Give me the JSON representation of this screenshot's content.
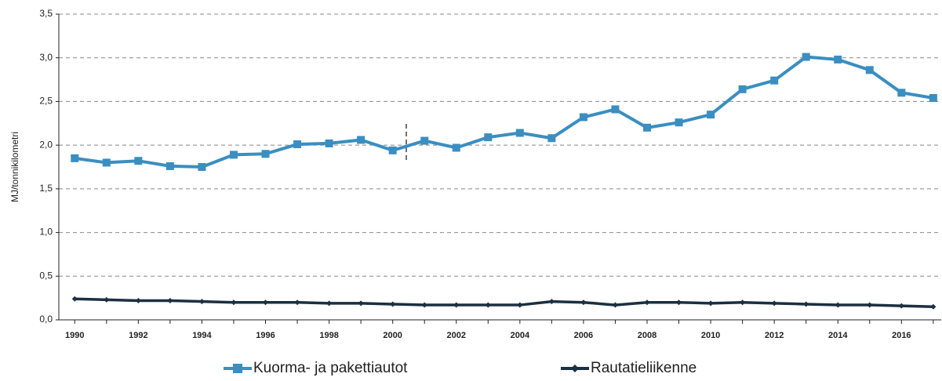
{
  "chart_data": {
    "type": "line",
    "y_label": "MJ/tonnikilometri",
    "x": [
      1990,
      1991,
      1992,
      1993,
      1994,
      1995,
      1996,
      1997,
      1998,
      1999,
      2000,
      2001,
      2002,
      2003,
      2004,
      2005,
      2006,
      2007,
      2008,
      2009,
      2010,
      2011,
      2012,
      2013,
      2014,
      2015,
      2016,
      2017
    ],
    "series": [
      {
        "name": "Kuorma- ja pakettiautot",
        "color": "#3a8ec1",
        "marker": "square",
        "values": [
          1.85,
          1.8,
          1.82,
          1.76,
          1.75,
          1.89,
          1.9,
          2.01,
          2.02,
          2.06,
          1.94,
          2.05,
          1.97,
          2.09,
          2.14,
          2.08,
          2.32,
          2.41,
          2.2,
          2.26,
          2.35,
          2.64,
          2.74,
          3.01,
          2.98,
          2.86,
          2.6,
          2.54
        ]
      },
      {
        "name": "Rautatieliikenne",
        "color": "#1b3041",
        "marker": "diamond",
        "values": [
          0.24,
          0.23,
          0.22,
          0.22,
          0.21,
          0.2,
          0.2,
          0.2,
          0.19,
          0.19,
          0.18,
          0.17,
          0.17,
          0.17,
          0.17,
          0.21,
          0.2,
          0.17,
          0.2,
          0.2,
          0.19,
          0.2,
          0.19,
          0.18,
          0.17,
          0.17,
          0.16,
          0.15
        ]
      }
    ],
    "xlim": [
      1989.5,
      2017.25
    ],
    "xticks": [
      1990,
      1992,
      1994,
      1996,
      1998,
      2000,
      2002,
      2004,
      2006,
      2008,
      2010,
      2012,
      2014,
      2016
    ],
    "ylim": [
      0,
      3.5
    ],
    "yticks": [
      {
        "value": 0,
        "label": "0,0"
      },
      {
        "value": 0.5,
        "label": "0,5"
      },
      {
        "value": 1,
        "label": "1,0"
      },
      {
        "value": 1.5,
        "label": "1,5"
      },
      {
        "value": 2,
        "label": "2,0"
      },
      {
        "value": 2.5,
        "label": "2,5"
      },
      {
        "value": 3,
        "label": "3,0"
      },
      {
        "value": 3.5,
        "label": "3,5"
      }
    ],
    "grid": true,
    "legend": "bottom"
  }
}
